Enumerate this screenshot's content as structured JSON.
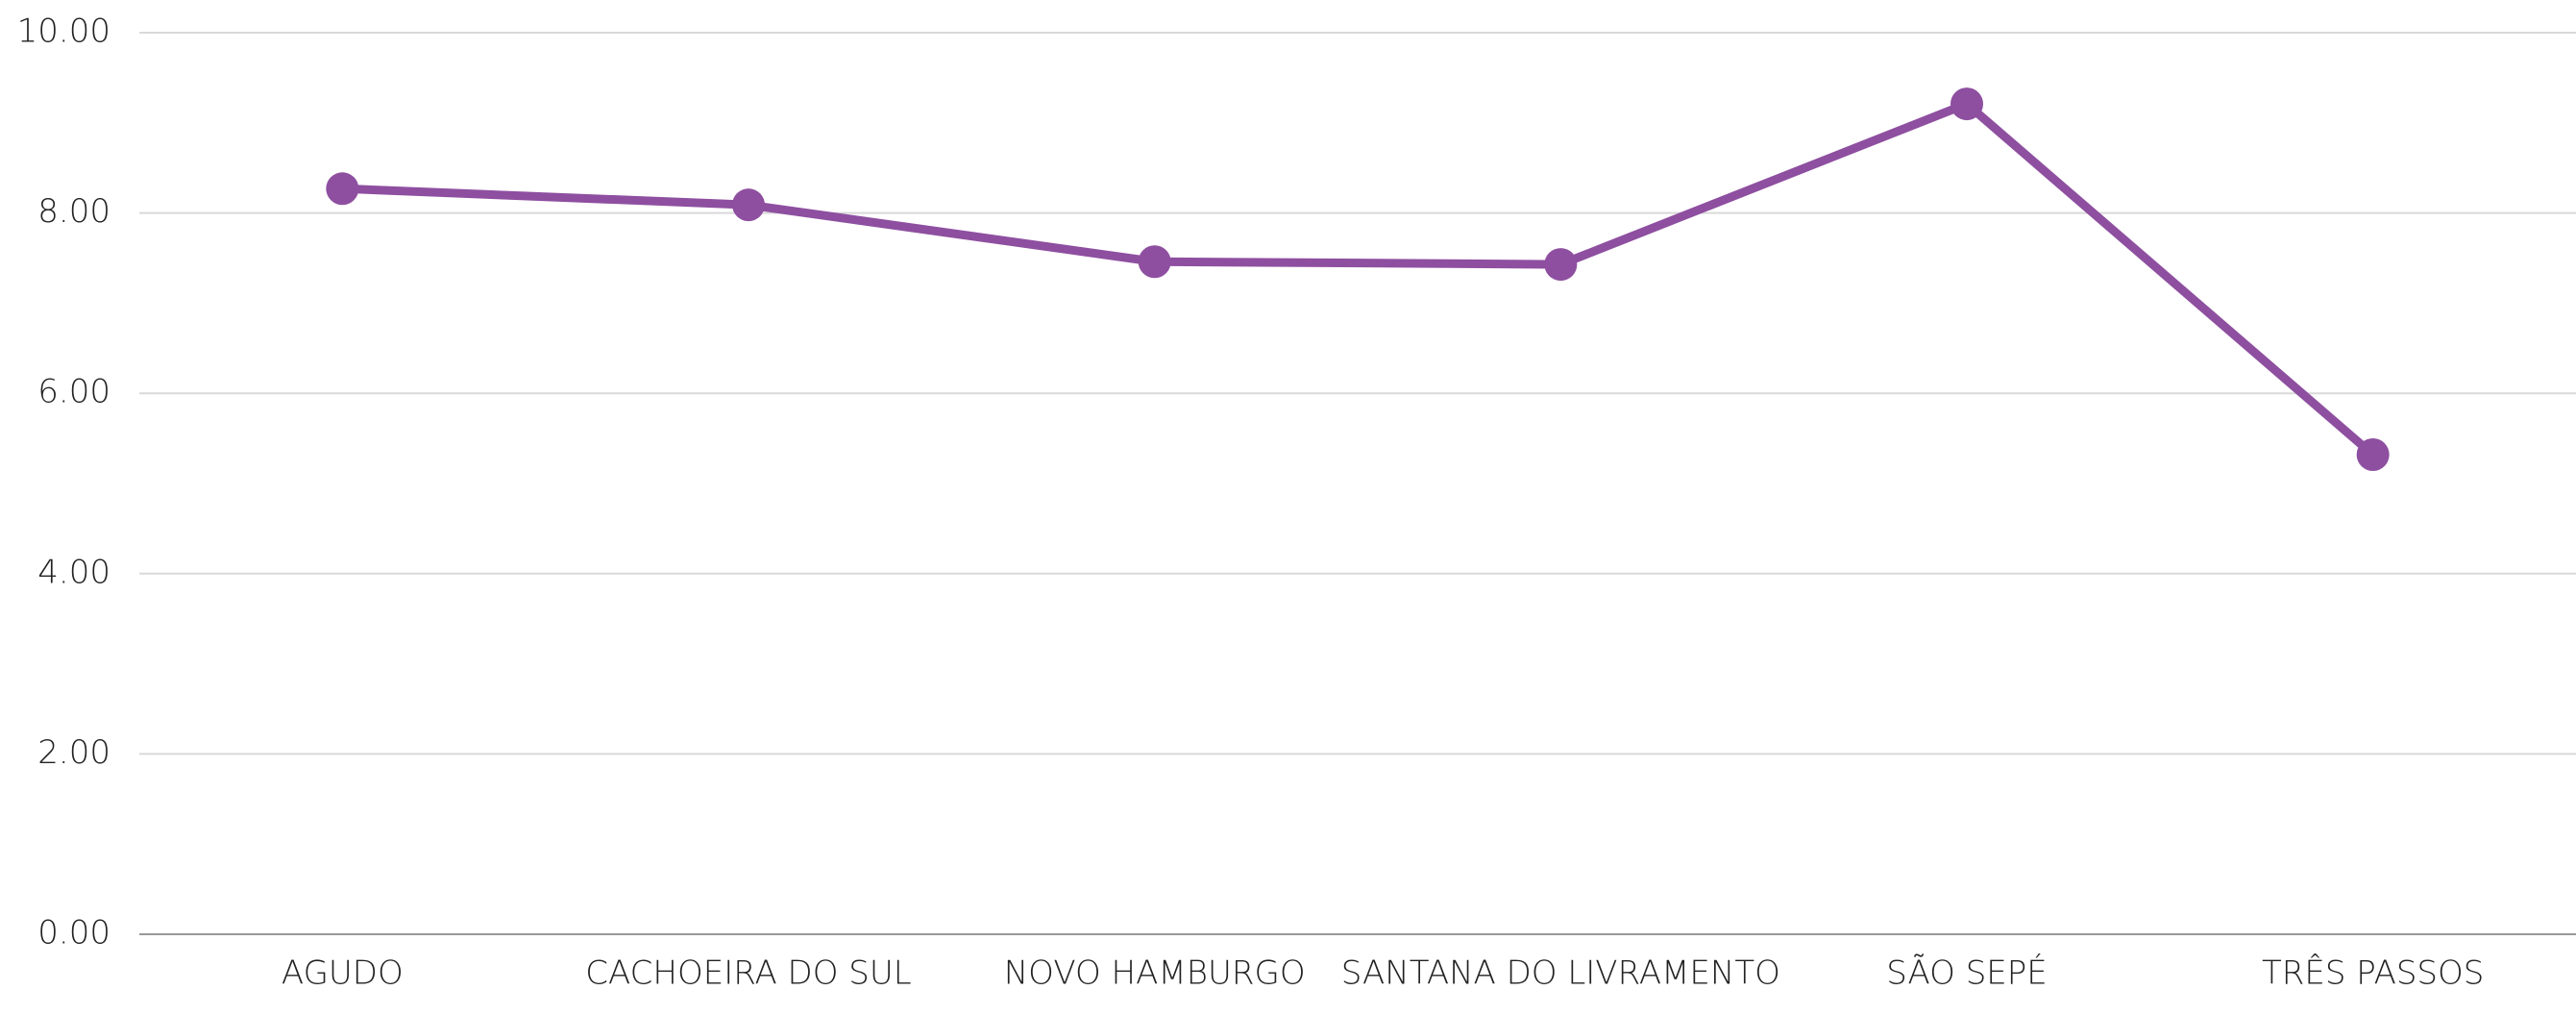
{
  "chart_data": {
    "type": "line",
    "categories": [
      "AGUDO",
      "CACHOEIRA DO SUL",
      "NOVO HAMBURGO",
      "SANTANA DO LIVRAMENTO",
      "SÃO SEPÉ",
      "TRÊS PASSOS"
    ],
    "series": [
      {
        "color": "#8e4fa0",
        "values": [
          8.27,
          8.09,
          7.46,
          7.43,
          9.21,
          5.32
        ]
      }
    ],
    "ylim": [
      0,
      10
    ],
    "yticks": [
      {
        "value": 0,
        "label": "0.00"
      },
      {
        "value": 2,
        "label": "2.00"
      },
      {
        "value": 4,
        "label": "4.00"
      },
      {
        "value": 6,
        "label": "6.00"
      },
      {
        "value": 8,
        "label": "8.00"
      },
      {
        "value": 10,
        "label": "10.00"
      }
    ],
    "grid": true
  }
}
